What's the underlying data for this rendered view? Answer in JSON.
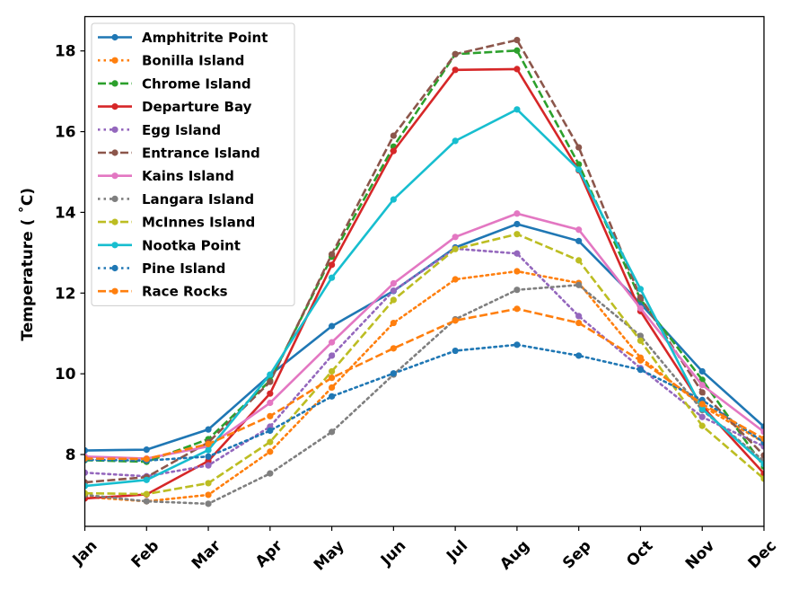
{
  "chart_data": {
    "type": "line",
    "title": "",
    "xlabel": "",
    "ylabel": "Temperature ($^\\circ$C)",
    "ylabel_display": "Temperature ( ˚C)",
    "categories": [
      "Jan",
      "Feb",
      "Mar",
      "Apr",
      "May",
      "Jun",
      "Jul",
      "Aug",
      "Sep",
      "Oct",
      "Nov",
      "Dec"
    ],
    "ylim": [
      6.22,
      18.85
    ],
    "yticks": [
      8,
      10,
      12,
      14,
      16,
      18
    ],
    "ytick_labels": [
      "8",
      "10",
      "12",
      "14",
      "16",
      "18"
    ],
    "grid": false,
    "legend_position": "top-left",
    "series": [
      {
        "name": "Amphitrite Point",
        "color": "#1f77b4",
        "linestyle": "solid",
        "values": [
          8.1,
          8.12,
          8.62,
          9.97,
          11.18,
          12.05,
          13.13,
          13.71,
          13.29,
          11.74,
          10.06,
          8.69
        ]
      },
      {
        "name": "Bonilla Island",
        "color": "#ff7f0e",
        "linestyle": "dotted",
        "values": [
          6.95,
          6.84,
          7.0,
          8.07,
          9.66,
          11.26,
          12.34,
          12.54,
          12.25,
          10.4,
          9.2,
          8.3
        ]
      },
      {
        "name": "Chrome Island",
        "color": "#2ca02c",
        "linestyle": "dashed",
        "values": [
          7.86,
          7.82,
          8.38,
          9.83,
          12.9,
          15.63,
          17.92,
          18.01,
          15.19,
          11.85,
          9.85,
          7.7
        ]
      },
      {
        "name": "Departure Bay",
        "color": "#d62728",
        "linestyle": "solid",
        "values": [
          6.91,
          7.01,
          7.84,
          9.51,
          12.7,
          15.52,
          17.53,
          17.55,
          15.04,
          11.55,
          9.2,
          7.53
        ]
      },
      {
        "name": "Egg Island",
        "color": "#9467bd",
        "linestyle": "dotted",
        "values": [
          7.55,
          7.46,
          7.73,
          8.69,
          10.45,
          12.06,
          13.1,
          12.98,
          11.43,
          10.14,
          8.93,
          8.2
        ]
      },
      {
        "name": "Entrance Island",
        "color": "#8c564b",
        "linestyle": "dashed",
        "values": [
          7.31,
          7.44,
          8.3,
          9.8,
          12.96,
          15.9,
          17.92,
          18.27,
          15.61,
          11.89,
          9.54,
          7.98
        ]
      },
      {
        "name": "Kains Island",
        "color": "#e377c2",
        "linestyle": "solid",
        "values": [
          7.95,
          7.9,
          8.2,
          9.28,
          10.78,
          12.24,
          13.39,
          13.97,
          13.57,
          11.62,
          9.72,
          8.56
        ]
      },
      {
        "name": "Langara Island",
        "color": "#7f7f7f",
        "linestyle": "dotted",
        "values": [
          7.0,
          6.84,
          6.78,
          7.53,
          8.56,
          9.98,
          11.35,
          12.08,
          12.2,
          10.94,
          9.1,
          7.84
        ]
      },
      {
        "name": "McInnes Island",
        "color": "#bcbd22",
        "linestyle": "dashed",
        "values": [
          7.04,
          7.02,
          7.29,
          8.31,
          10.06,
          11.83,
          13.09,
          13.46,
          12.81,
          10.82,
          8.71,
          7.4
        ]
      },
      {
        "name": "Nootka Point",
        "color": "#17becf",
        "linestyle": "solid",
        "values": [
          7.22,
          7.37,
          8.11,
          9.98,
          12.38,
          14.32,
          15.77,
          16.55,
          15.06,
          12.1,
          9.13,
          7.76
        ]
      },
      {
        "name": "Pine Island",
        "color": "#1f77b4",
        "linestyle": "dotted",
        "values": [
          7.87,
          7.85,
          7.95,
          8.59,
          9.44,
          10.01,
          10.57,
          10.72,
          10.45,
          10.1,
          9.35,
          8.3
        ]
      },
      {
        "name": "Race Rocks",
        "color": "#ff7f0e",
        "linestyle": "dashed",
        "values": [
          7.9,
          7.89,
          8.26,
          8.95,
          9.9,
          10.63,
          11.32,
          11.61,
          11.26,
          10.33,
          9.25,
          8.39
        ]
      }
    ]
  }
}
